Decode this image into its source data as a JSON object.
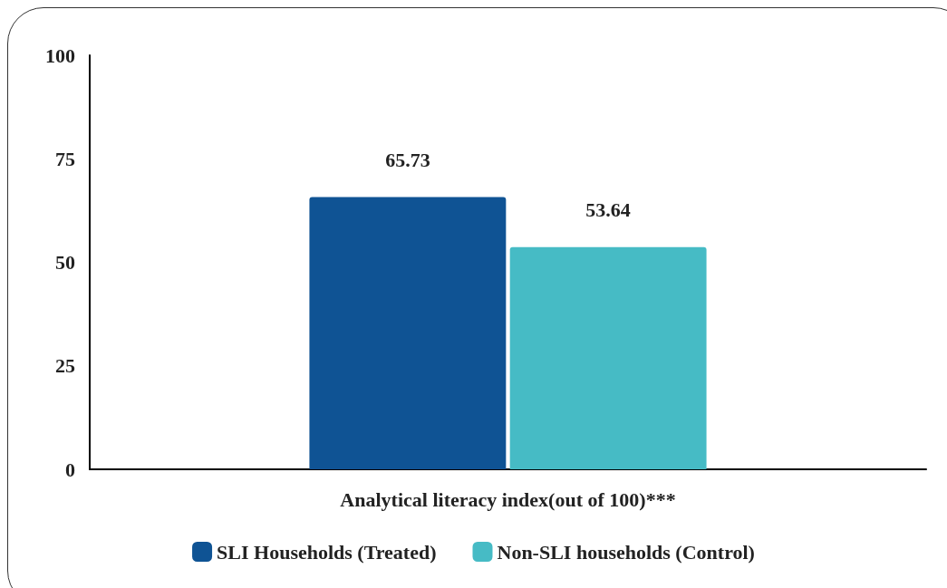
{
  "chart_data": {
    "type": "bar",
    "categories": [
      "Analytical literacy index(out of 100)***"
    ],
    "series": [
      {
        "name": "SLI Households (Treated)",
        "color": "#0f5394",
        "values": [
          65.73
        ]
      },
      {
        "name": "Non-SLI households (Control)",
        "color": "#46bbc5",
        "values": [
          53.64
        ]
      }
    ],
    "ylim": [
      0,
      100
    ],
    "yticks": [
      0,
      25,
      50,
      75,
      100
    ],
    "grid": false,
    "legend": "bottom",
    "data_labels": true
  }
}
